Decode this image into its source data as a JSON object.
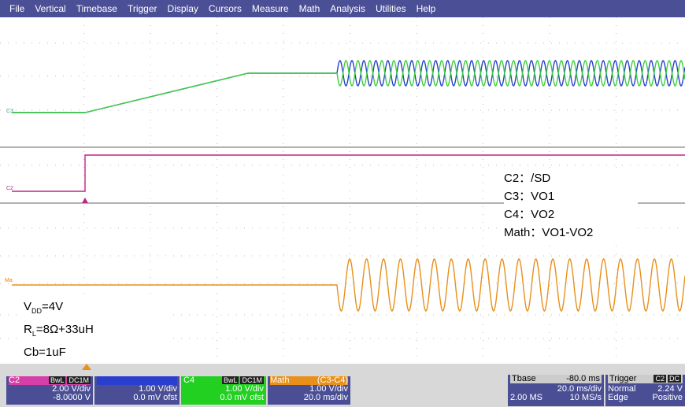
{
  "menu": [
    "File",
    "Vertical",
    "Timebase",
    "Trigger",
    "Display",
    "Cursors",
    "Measure",
    "Math",
    "Analysis",
    "Utilities",
    "Help"
  ],
  "trace_labels": {
    "c3": "C3",
    "c2": "C2",
    "math": "Ma"
  },
  "legend": [
    "C2：/SD",
    "C3：VO1",
    "C4：VO2",
    "Math：VO1-VO2"
  ],
  "conditions": {
    "vdd": {
      "main": "V",
      "sub": "DD",
      "rest": "=4V"
    },
    "rl": {
      "main": "R",
      "sub": "L",
      "rest": "=8Ω+33uH"
    },
    "cb": "Cb=1uF"
  },
  "status": {
    "c2": {
      "name": "C2",
      "flags": [
        "BwL",
        "DC1M"
      ],
      "lines": [
        "2.00 V/div",
        "-8.0000 V"
      ]
    },
    "c3": {
      "lines": [
        "1.00 V/div",
        "0.0 mV ofst"
      ]
    },
    "c4": {
      "name": "C4",
      "flags": [
        "BwL",
        "DC1M"
      ],
      "lines": [
        "1.00 V/div",
        "0.0 mV ofst"
      ]
    },
    "math": {
      "name": "Math",
      "source": "(C3-C4)",
      "lines": [
        "1.00 V/div",
        "20.0 ms/div"
      ]
    },
    "tbase": {
      "name": "Tbase",
      "offset": "-80.0 ms",
      "div": "20.0 ms/div",
      "samples": "2.00 MS",
      "rate": "10 MS/s"
    },
    "trigger": {
      "name": "Trigger",
      "source": "C2",
      "coupling": "DC",
      "mode": "Normal",
      "level": "2.24 V",
      "type": "Edge",
      "slope": "Positive"
    }
  }
}
